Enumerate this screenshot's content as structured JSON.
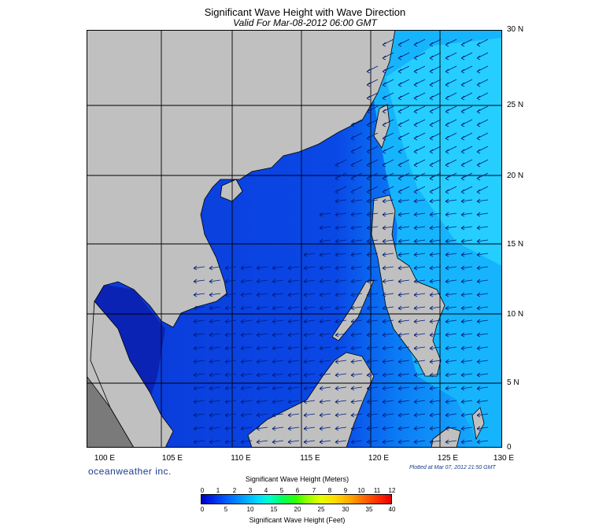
{
  "title": "Significant Wave Height with Wave Direction",
  "subtitle": "Valid For Mar-08-2012 06:00 GMT",
  "brand": "oceanweather inc.",
  "plotted": "Plotted at Mar 07, 2012 21:50 GMT",
  "lat_labels": [
    "30 N",
    "25 N",
    "20 N",
    "15 N",
    "10 N",
    "5 N",
    "0"
  ],
  "lon_labels": [
    "100 E",
    "105 E",
    "110 E",
    "115 E",
    "120 E",
    "125 E",
    "130 E"
  ],
  "legend": {
    "meters_title": "Significant Wave Height (Meters)",
    "feet_title": "Significant Wave Height (Feet)",
    "meters_ticks": [
      "0",
      "1",
      "2",
      "3",
      "4",
      "5",
      "6",
      "7",
      "8",
      "9",
      "10",
      "11",
      "12"
    ],
    "feet_ticks": [
      "0",
      "5",
      "10",
      "15",
      "20",
      "25",
      "30",
      "35",
      "40"
    ]
  },
  "colors": {
    "land": "#c0c0c0",
    "sea_deep": "#0a2fd6",
    "sea_mid": "#0a52ee",
    "sea_light": "#19c5ff",
    "arrows": "#001c7a"
  }
}
